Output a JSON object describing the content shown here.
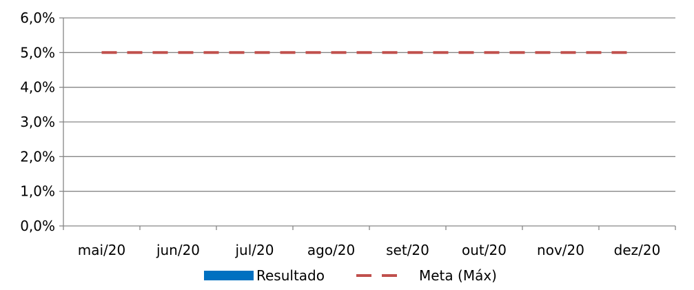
{
  "chart_data": {
    "type": "line",
    "title": "",
    "xlabel": "",
    "ylabel": "",
    "categories": [
      "mai/20",
      "jun/20",
      "jul/20",
      "ago/20",
      "set/20",
      "out/20",
      "nov/20",
      "dez/20"
    ],
    "y_tick_labels": [
      "0,0%",
      "1,0%",
      "2,0%",
      "3,0%",
      "4,0%",
      "5,0%",
      "6,0%"
    ],
    "y_ticks": [
      0,
      1,
      2,
      3,
      4,
      5,
      6
    ],
    "ylim": [
      0,
      6
    ],
    "grid": true,
    "legend_position": "bottom",
    "series": [
      {
        "name": "Resultado",
        "kind": "bar",
        "color": "#0070C0",
        "values": [
          null,
          null,
          null,
          null,
          null,
          null,
          null,
          null
        ]
      },
      {
        "name": "Meta (Máx)",
        "kind": "line",
        "style": "dashed",
        "color": "#C0504D",
        "values": [
          5,
          5,
          5,
          5,
          5,
          5,
          5,
          5
        ]
      }
    ]
  }
}
